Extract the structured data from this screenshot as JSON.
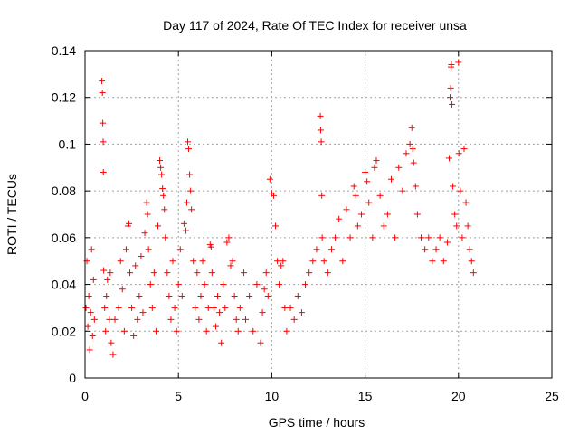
{
  "chart_data": {
    "type": "scatter",
    "title": "Day 117 of 2024, Rate Of TEC Index for receiver unsa",
    "xlabel": "GPS time / hours",
    "ylabel": "ROTI / TECUs",
    "xlim": [
      0,
      25
    ],
    "ylim": [
      0,
      0.14
    ],
    "xticks": [
      0,
      5,
      10,
      15,
      20,
      25
    ],
    "yticks": [
      0,
      0.02,
      0.04,
      0.06,
      0.08,
      0.1,
      0.12,
      0.14
    ],
    "xtick_labels": [
      "0",
      "5",
      "10",
      "15",
      "20",
      "25"
    ],
    "ytick_labels": [
      "0",
      "0.02",
      "0.04",
      "0.06",
      "0.08",
      "0.1",
      "0.12",
      "0.14"
    ],
    "grid": true,
    "marker": "+",
    "color": "#ff0000",
    "series": [
      {
        "points": [
          [
            0.05,
            0.03
          ],
          [
            0.1,
            0.05
          ],
          [
            0.15,
            0.022
          ],
          [
            0.2,
            0.035
          ],
          [
            0.25,
            0.012
          ],
          [
            0.3,
            0.028
          ],
          [
            0.35,
            0.055
          ],
          [
            0.4,
            0.018
          ],
          [
            0.45,
            0.042
          ],
          [
            0.5,
            0.025
          ],
          [
            0.9,
            0.127
          ],
          [
            0.93,
            0.122
          ],
          [
            0.95,
            0.109
          ],
          [
            0.97,
            0.101
          ],
          [
            0.98,
            0.088
          ],
          [
            1.0,
            0.046
          ],
          [
            1.05,
            0.03
          ],
          [
            1.1,
            0.02
          ],
          [
            1.15,
            0.035
          ],
          [
            1.2,
            0.042
          ],
          [
            1.3,
            0.025
          ],
          [
            1.35,
            0.045
          ],
          [
            1.4,
            0.015
          ],
          [
            1.5,
            0.01
          ],
          [
            1.6,
            0.025
          ],
          [
            1.8,
            0.03
          ],
          [
            1.9,
            0.05
          ],
          [
            2.0,
            0.038
          ],
          [
            2.1,
            0.02
          ],
          [
            2.2,
            0.055
          ],
          [
            2.3,
            0.065
          ],
          [
            2.35,
            0.066
          ],
          [
            2.4,
            0.045
          ],
          [
            2.5,
            0.03
          ],
          [
            2.6,
            0.018
          ],
          [
            2.7,
            0.048
          ],
          [
            2.8,
            0.025
          ],
          [
            2.9,
            0.035
          ],
          [
            3.0,
            0.052
          ],
          [
            3.1,
            0.028
          ],
          [
            3.2,
            0.062
          ],
          [
            3.3,
            0.075
          ],
          [
            3.35,
            0.07
          ],
          [
            3.4,
            0.055
          ],
          [
            3.5,
            0.04
          ],
          [
            3.6,
            0.03
          ],
          [
            3.7,
            0.045
          ],
          [
            3.8,
            0.02
          ],
          [
            3.9,
            0.065
          ],
          [
            4.0,
            0.093
          ],
          [
            4.05,
            0.09
          ],
          [
            4.1,
            0.087
          ],
          [
            4.15,
            0.081
          ],
          [
            4.2,
            0.078
          ],
          [
            4.25,
            0.072
          ],
          [
            4.3,
            0.06
          ],
          [
            4.4,
            0.045
          ],
          [
            4.5,
            0.035
          ],
          [
            4.6,
            0.025
          ],
          [
            4.7,
            0.05
          ],
          [
            4.8,
            0.03
          ],
          [
            4.9,
            0.02
          ],
          [
            5.0,
            0.04
          ],
          [
            5.1,
            0.055
          ],
          [
            5.2,
            0.035
          ],
          [
            5.3,
            0.066
          ],
          [
            5.4,
            0.063
          ],
          [
            5.45,
            0.075
          ],
          [
            5.5,
            0.101
          ],
          [
            5.55,
            0.098
          ],
          [
            5.6,
            0.087
          ],
          [
            5.65,
            0.08
          ],
          [
            5.7,
            0.072
          ],
          [
            5.8,
            0.05
          ],
          [
            5.9,
            0.03
          ],
          [
            6.0,
            0.045
          ],
          [
            6.1,
            0.025
          ],
          [
            6.2,
            0.035
          ],
          [
            6.3,
            0.05
          ],
          [
            6.4,
            0.04
          ],
          [
            6.5,
            0.02
          ],
          [
            6.6,
            0.03
          ],
          [
            6.7,
            0.057
          ],
          [
            6.75,
            0.056
          ],
          [
            6.8,
            0.045
          ],
          [
            6.9,
            0.03
          ],
          [
            7.0,
            0.022
          ],
          [
            7.1,
            0.035
          ],
          [
            7.2,
            0.028
          ],
          [
            7.3,
            0.015
          ],
          [
            7.4,
            0.04
          ],
          [
            7.5,
            0.03
          ],
          [
            7.6,
            0.058
          ],
          [
            7.7,
            0.06
          ],
          [
            7.8,
            0.048
          ],
          [
            7.9,
            0.05
          ],
          [
            8.0,
            0.035
          ],
          [
            8.1,
            0.025
          ],
          [
            8.2,
            0.02
          ],
          [
            8.3,
            0.03
          ],
          [
            8.5,
            0.045
          ],
          [
            8.6,
            0.025
          ],
          [
            8.8,
            0.035
          ],
          [
            9.0,
            0.02
          ],
          [
            9.2,
            0.04
          ],
          [
            9.4,
            0.015
          ],
          [
            9.5,
            0.028
          ],
          [
            9.6,
            0.038
          ],
          [
            9.7,
            0.045
          ],
          [
            9.8,
            0.035
          ],
          [
            9.9,
            0.085
          ],
          [
            10.0,
            0.079
          ],
          [
            10.1,
            0.078
          ],
          [
            10.2,
            0.065
          ],
          [
            10.3,
            0.05
          ],
          [
            10.4,
            0.04
          ],
          [
            10.5,
            0.048
          ],
          [
            10.6,
            0.05
          ],
          [
            10.7,
            0.03
          ],
          [
            10.8,
            0.02
          ],
          [
            11.0,
            0.03
          ],
          [
            11.2,
            0.025
          ],
          [
            11.4,
            0.035
          ],
          [
            11.6,
            0.028
          ],
          [
            11.8,
            0.04
          ],
          [
            12.0,
            0.045
          ],
          [
            12.2,
            0.05
          ],
          [
            12.4,
            0.055
          ],
          [
            12.6,
            0.112
          ],
          [
            12.62,
            0.106
          ],
          [
            12.65,
            0.101
          ],
          [
            12.68,
            0.078
          ],
          [
            12.7,
            0.06
          ],
          [
            12.8,
            0.05
          ],
          [
            13.0,
            0.045
          ],
          [
            13.2,
            0.055
          ],
          [
            13.4,
            0.06
          ],
          [
            13.6,
            0.068
          ],
          [
            13.8,
            0.05
          ],
          [
            14.0,
            0.072
          ],
          [
            14.2,
            0.06
          ],
          [
            14.4,
            0.082
          ],
          [
            14.5,
            0.078
          ],
          [
            14.6,
            0.065
          ],
          [
            14.8,
            0.07
          ],
          [
            15.0,
            0.088
          ],
          [
            15.1,
            0.084
          ],
          [
            15.2,
            0.075
          ],
          [
            15.4,
            0.06
          ],
          [
            15.5,
            0.09
          ],
          [
            15.6,
            0.093
          ],
          [
            15.8,
            0.078
          ],
          [
            16.0,
            0.065
          ],
          [
            16.2,
            0.07
          ],
          [
            16.4,
            0.085
          ],
          [
            16.6,
            0.06
          ],
          [
            16.8,
            0.09
          ],
          [
            17.0,
            0.08
          ],
          [
            17.2,
            0.096
          ],
          [
            17.4,
            0.1
          ],
          [
            17.5,
            0.107
          ],
          [
            17.55,
            0.098
          ],
          [
            17.6,
            0.092
          ],
          [
            17.7,
            0.082
          ],
          [
            17.8,
            0.07
          ],
          [
            18.0,
            0.06
          ],
          [
            18.2,
            0.055
          ],
          [
            18.4,
            0.06
          ],
          [
            18.6,
            0.05
          ],
          [
            18.8,
            0.055
          ],
          [
            19.0,
            0.06
          ],
          [
            19.2,
            0.05
          ],
          [
            19.4,
            0.058
          ],
          [
            19.5,
            0.094
          ],
          [
            19.55,
            0.12
          ],
          [
            19.58,
            0.124
          ],
          [
            19.6,
            0.133
          ],
          [
            19.62,
            0.134
          ],
          [
            19.65,
            0.117
          ],
          [
            19.7,
            0.082
          ],
          [
            19.8,
            0.07
          ],
          [
            19.9,
            0.065
          ],
          [
            20.0,
            0.135
          ],
          [
            20.02,
            0.096
          ],
          [
            20.1,
            0.08
          ],
          [
            20.2,
            0.06
          ],
          [
            20.3,
            0.098
          ],
          [
            20.4,
            0.075
          ],
          [
            20.5,
            0.065
          ],
          [
            20.6,
            0.055
          ],
          [
            20.7,
            0.05
          ],
          [
            20.8,
            0.045
          ]
        ]
      }
    ]
  }
}
